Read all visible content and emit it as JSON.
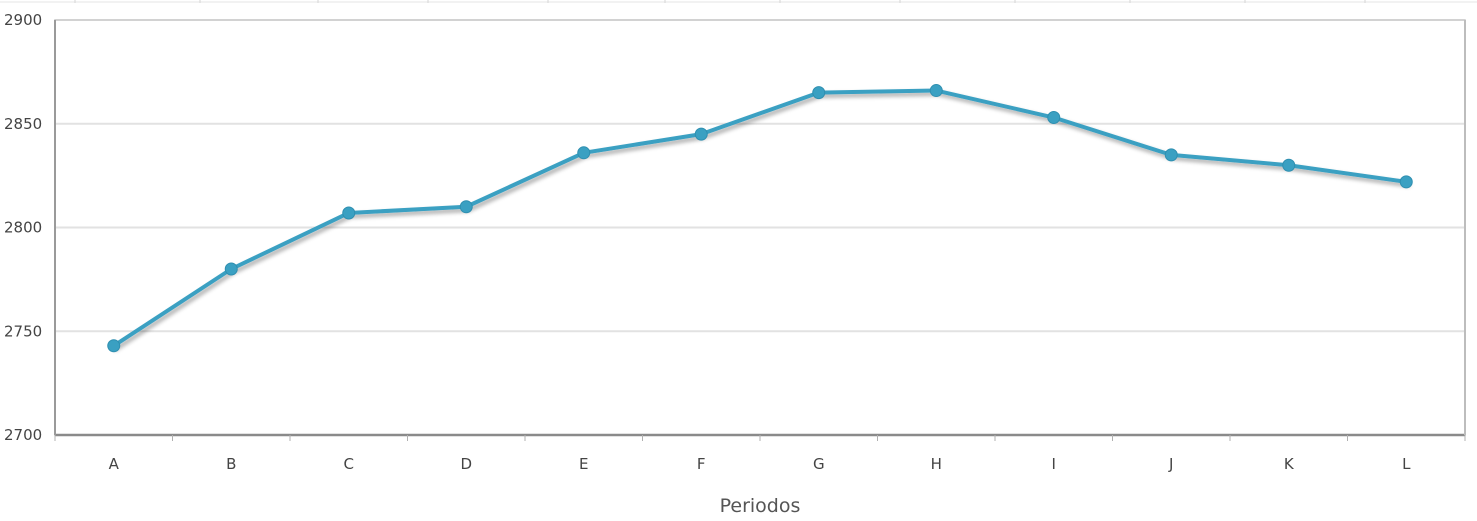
{
  "chart_data": {
    "type": "line",
    "title": "",
    "xlabel": "Periodos",
    "ylabel": "",
    "categories": [
      "A",
      "B",
      "C",
      "D",
      "E",
      "F",
      "G",
      "H",
      "I",
      "J",
      "K",
      "L"
    ],
    "series": [
      {
        "values": [
          2743,
          2780,
          2807,
          2810,
          2836,
          2845,
          2865,
          2866,
          2853,
          2835,
          2830,
          2822
        ]
      }
    ],
    "ylim": [
      2700,
      2900
    ],
    "yticks": [
      2700,
      2750,
      2800,
      2850,
      2900
    ],
    "grid": true,
    "legend": "none",
    "colors": {
      "line": "#3aa0c2",
      "marker": "#3aa0c2",
      "grid": "#e2e2e2",
      "axis": "#8a8a8a"
    }
  }
}
